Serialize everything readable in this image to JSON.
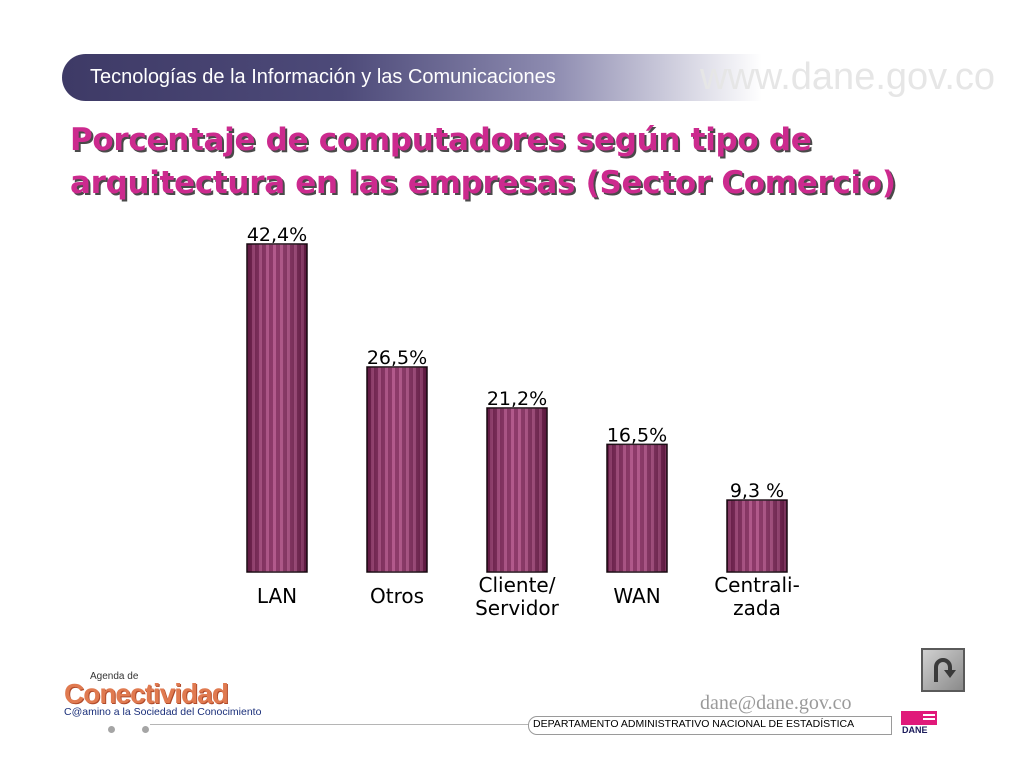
{
  "header": {
    "section": "Tecnologías de la Información y las Comunicaciones",
    "url": "www.dane.gov.co"
  },
  "title_lines": [
    "Porcentaje de computadores según tipo de",
    "arquitectura en las empresas (Sector Comercio)"
  ],
  "chart_data": {
    "type": "bar",
    "title": "Porcentaje de computadores según tipo de arquitectura en las empresas (Sector Comercio)",
    "categories": [
      [
        "LAN"
      ],
      [
        "Otros"
      ],
      [
        "Cliente/",
        "Servidor"
      ],
      [
        "WAN"
      ],
      [
        "Centrali-",
        "zada"
      ]
    ],
    "values": [
      42.4,
      26.5,
      21.2,
      16.5,
      9.3
    ],
    "value_labels": [
      "42,4%",
      "26,5%",
      "21,2%",
      "16,5%",
      "9,3 %"
    ],
    "ylim": [
      0,
      42.4
    ],
    "grid": false,
    "legend": "none",
    "bar_color": "#8c2560"
  },
  "footer": {
    "email": "dane@dane.gov.co",
    "department": "DEPARTAMENTO ADMINISTRATIVO NACIONAL DE ESTADÍSTICA",
    "dane_word": "DANE",
    "logo_top": "Agenda de",
    "logo_main": "Conectividad",
    "logo_sub": "C@amino a la Sociedad del Conocimiento"
  },
  "nav": {
    "back_icon": "u-turn-arrow-icon"
  }
}
